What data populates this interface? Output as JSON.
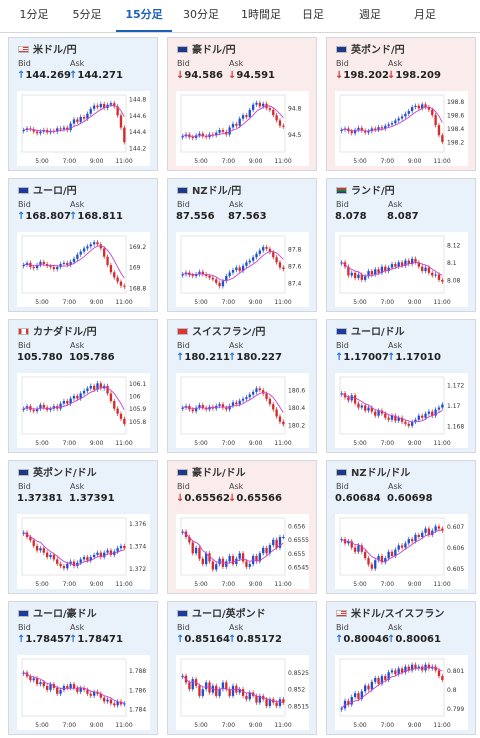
{
  "tabs": [
    {
      "label": "1分足",
      "active": false
    },
    {
      "label": "5分足",
      "active": false
    },
    {
      "label": "15分足",
      "active": true
    },
    {
      "label": "30分足",
      "active": false
    },
    {
      "label": "1時間足",
      "active": false
    },
    {
      "label": "日足",
      "active": false
    },
    {
      "label": "週足",
      "active": false
    },
    {
      "label": "月足",
      "active": false
    }
  ],
  "labels": {
    "bid": "Bid",
    "ask": "Ask"
  },
  "colors": {
    "up_bg": "#e9f2fb",
    "down_bg": "#fbecec",
    "up_arrow": "#1f74d6",
    "down_arrow": "#d23434",
    "bull": "#1f4fd1",
    "bear": "#d62b2b",
    "ma": "#c940d0",
    "accent": "#1b61b8"
  },
  "x_ticks": [
    "5:00",
    "7:00",
    "9:00",
    "11:00"
  ],
  "pairs": [
    {
      "name": "米ドル/円",
      "flag": "us",
      "trend": "up",
      "bid": "144.269",
      "ask": "144.271",
      "bid_dir": "up",
      "ask_dir": "up",
      "ylim": [
        144.15,
        144.85
      ],
      "y_ticks": [
        "144.8",
        "144.6",
        "144.4",
        "144.2"
      ],
      "y_tick_values": [
        144.8,
        144.6,
        144.4,
        144.2
      ],
      "chart_data": {
        "type": "candlestick",
        "close": [
          144.42,
          144.44,
          144.43,
          144.4,
          144.38,
          144.4,
          144.42,
          144.39,
          144.41,
          144.4,
          144.44,
          144.43,
          144.45,
          144.42,
          144.5,
          144.55,
          144.52,
          144.58,
          144.56,
          144.62,
          144.68,
          144.72,
          144.7,
          144.74,
          144.69,
          144.73,
          144.75,
          144.71,
          144.6,
          144.45,
          144.27
        ]
      }
    },
    {
      "name": "豪ドル/円",
      "flag": "au",
      "trend": "down",
      "bid": "94.586",
      "ask": "94.591",
      "bid_dir": "down",
      "ask_dir": "down",
      "ylim": [
        94.3,
        94.95
      ],
      "y_ticks": [
        "94.8",
        "94.5"
      ],
      "y_tick_values": [
        94.8,
        94.5
      ],
      "chart_data": {
        "type": "candlestick",
        "close": [
          94.48,
          94.5,
          94.47,
          94.46,
          94.49,
          94.51,
          94.48,
          94.47,
          94.5,
          94.49,
          94.52,
          94.55,
          94.53,
          94.5,
          94.58,
          94.62,
          94.6,
          94.68,
          94.72,
          94.7,
          94.78,
          94.84,
          94.86,
          94.82,
          94.85,
          94.8,
          94.78,
          94.72,
          94.66,
          94.6,
          94.59
        ]
      }
    },
    {
      "name": "英ポンド/円",
      "flag": "gb",
      "trend": "down",
      "bid": "198.202",
      "ask": "198.209",
      "bid_dir": "down",
      "ask_dir": "down",
      "ylim": [
        198.05,
        198.9
      ],
      "y_ticks": [
        "198.8",
        "198.6",
        "198.4",
        "198.2"
      ],
      "y_tick_values": [
        198.8,
        198.6,
        198.4,
        198.2
      ],
      "chart_data": {
        "type": "candlestick",
        "close": [
          198.38,
          198.4,
          198.36,
          198.33,
          198.38,
          198.41,
          198.37,
          198.34,
          198.36,
          198.4,
          198.38,
          198.42,
          198.4,
          198.44,
          198.46,
          198.48,
          198.52,
          198.55,
          198.58,
          198.62,
          198.66,
          198.72,
          198.74,
          198.7,
          198.76,
          198.72,
          198.68,
          198.6,
          198.45,
          198.3,
          198.2
        ]
      }
    },
    {
      "name": "ユーロ/円",
      "flag": "eu",
      "trend": "up",
      "bid": "168.807",
      "ask": "168.811",
      "bid_dir": "up",
      "ask_dir": "up",
      "ylim": [
        168.75,
        169.3
      ],
      "y_ticks": [
        "169.2",
        "169",
        "168.8"
      ],
      "y_tick_values": [
        169.2,
        169.0,
        168.8
      ],
      "chart_data": {
        "type": "candlestick",
        "close": [
          169.02,
          169.04,
          169.0,
          168.99,
          169.02,
          169.05,
          169.03,
          169.01,
          169.0,
          168.98,
          169.0,
          169.03,
          169.04,
          169.02,
          169.05,
          169.08,
          169.12,
          169.15,
          169.18,
          169.2,
          169.22,
          169.24,
          169.22,
          169.18,
          169.1,
          169.02,
          168.95,
          168.9,
          168.86,
          168.82,
          168.81
        ]
      }
    },
    {
      "name": "NZドル/円",
      "flag": "nz",
      "trend": "up",
      "bid": "87.556",
      "ask": "87.563",
      "bid_dir": "none",
      "ask_dir": "none",
      "ylim": [
        87.28,
        87.95
      ],
      "y_ticks": [
        "87.8",
        "87.6",
        "87.4"
      ],
      "y_tick_values": [
        87.8,
        87.6,
        87.4
      ],
      "chart_data": {
        "type": "candlestick",
        "close": [
          87.5,
          87.52,
          87.49,
          87.48,
          87.5,
          87.53,
          87.5,
          87.48,
          87.46,
          87.44,
          87.4,
          87.36,
          87.42,
          87.48,
          87.52,
          87.55,
          87.58,
          87.54,
          87.6,
          87.64,
          87.66,
          87.7,
          87.74,
          87.78,
          87.82,
          87.8,
          87.76,
          87.7,
          87.64,
          87.58,
          87.56
        ]
      }
    },
    {
      "name": "ランド/円",
      "flag": "za",
      "trend": "up",
      "bid": "8.078",
      "ask": "8.087",
      "bid_dir": "none",
      "ask_dir": "none",
      "ylim": [
        8.065,
        8.13
      ],
      "y_ticks": [
        "8.12",
        "8.1",
        "8.08"
      ],
      "y_tick_values": [
        8.12,
        8.1,
        8.08
      ],
      "chart_data": {
        "type": "candlestick",
        "close": [
          8.1,
          8.095,
          8.085,
          8.088,
          8.082,
          8.086,
          8.08,
          8.084,
          8.09,
          8.086,
          8.092,
          8.088,
          8.095,
          8.09,
          8.094,
          8.098,
          8.095,
          8.1,
          8.096,
          8.102,
          8.098,
          8.104,
          8.1,
          8.095,
          8.09,
          8.094,
          8.088,
          8.085,
          8.086,
          8.08,
          8.078
        ]
      }
    },
    {
      "name": "カナダドル/円",
      "flag": "ca",
      "trend": "up",
      "bid": "105.780",
      "ask": "105.786",
      "bid_dir": "none",
      "ask_dir": "none",
      "ylim": [
        105.7,
        106.15
      ],
      "y_ticks": [
        "106.1",
        "106",
        "105.9",
        "105.8"
      ],
      "y_tick_values": [
        106.1,
        106.0,
        105.9,
        105.8
      ],
      "chart_data": {
        "type": "candlestick",
        "close": [
          105.9,
          105.92,
          105.89,
          105.88,
          105.9,
          105.93,
          105.91,
          105.89,
          105.9,
          105.92,
          105.9,
          105.94,
          105.96,
          105.94,
          105.98,
          106.0,
          105.98,
          106.02,
          106.04,
          106.06,
          106.08,
          106.05,
          106.1,
          106.06,
          106.08,
          106.02,
          105.96,
          105.9,
          105.86,
          105.82,
          105.78
        ]
      }
    },
    {
      "name": "スイスフラン/円",
      "flag": "ch",
      "trend": "up",
      "bid": "180.211",
      "ask": "180.227",
      "bid_dir": "up",
      "ask_dir": "up",
      "ylim": [
        180.1,
        180.75
      ],
      "y_ticks": [
        "180.6",
        "180.4",
        "180.2"
      ],
      "y_tick_values": [
        180.6,
        180.4,
        180.2
      ],
      "chart_data": {
        "type": "candlestick",
        "close": [
          180.4,
          180.42,
          180.38,
          180.36,
          180.4,
          180.43,
          180.4,
          180.38,
          180.41,
          180.39,
          180.42,
          180.44,
          180.4,
          180.38,
          180.42,
          180.46,
          180.44,
          180.48,
          180.5,
          180.52,
          180.55,
          180.58,
          180.62,
          180.6,
          180.56,
          180.5,
          180.44,
          180.38,
          180.3,
          180.24,
          180.21
        ]
      }
    },
    {
      "name": "ユーロ/ドル",
      "flag": "eu",
      "trend": "up",
      "bid": "1.17007",
      "ask": "1.17010",
      "bid_dir": "up",
      "ask_dir": "up",
      "ylim": [
        1.1672,
        1.1728
      ],
      "y_ticks": [
        "1.172",
        "1.17",
        "1.168"
      ],
      "y_tick_values": [
        1.172,
        1.17,
        1.168
      ],
      "chart_data": {
        "type": "candlestick",
        "close": [
          1.1712,
          1.1708,
          1.1705,
          1.171,
          1.1702,
          1.1698,
          1.17,
          1.1695,
          1.1698,
          1.1694,
          1.169,
          1.1695,
          1.1692,
          1.1688,
          1.1686,
          1.169,
          1.1685,
          1.1688,
          1.1684,
          1.1682,
          1.168,
          1.1684,
          1.1686,
          1.169,
          1.1688,
          1.1692,
          1.1694,
          1.169,
          1.1696,
          1.1698,
          1.1701
        ]
      }
    },
    {
      "name": "英ポンド/ドル",
      "flag": "gb",
      "trend": "up",
      "bid": "1.37381",
      "ask": "1.37391",
      "bid_dir": "none",
      "ask_dir": "none",
      "ylim": [
        1.3714,
        1.3765
      ],
      "y_ticks": [
        "1.376",
        "1.374",
        "1.372"
      ],
      "y_tick_values": [
        1.376,
        1.374,
        1.372
      ],
      "chart_data": {
        "type": "candlestick",
        "close": [
          1.3752,
          1.3748,
          1.3745,
          1.374,
          1.3736,
          1.3738,
          1.3734,
          1.373,
          1.3732,
          1.3728,
          1.3724,
          1.3722,
          1.372,
          1.3724,
          1.3726,
          1.3722,
          1.3725,
          1.3728,
          1.373,
          1.3727,
          1.373,
          1.3732,
          1.3734,
          1.373,
          1.3734,
          1.3736,
          1.3732,
          1.3735,
          1.3738,
          1.374,
          1.3738
        ]
      }
    },
    {
      "name": "豪ドル/ドル",
      "flag": "au",
      "trend": "down",
      "bid": "0.65562",
      "ask": "0.65566",
      "bid_dir": "down",
      "ask_dir": "down",
      "ylim": [
        0.6542,
        0.6563
      ],
      "y_ticks": [
        "0.656",
        "0.6555",
        "0.655",
        "0.6545"
      ],
      "y_tick_values": [
        0.656,
        0.6555,
        0.655,
        0.6545
      ],
      "chart_data": {
        "type": "candlestick",
        "close": [
          0.6558,
          0.6556,
          0.6554,
          0.655,
          0.6552,
          0.6548,
          0.6546,
          0.655,
          0.6547,
          0.6544,
          0.6546,
          0.6548,
          0.6545,
          0.6547,
          0.6549,
          0.6546,
          0.6548,
          0.655,
          0.6547,
          0.6545,
          0.6546,
          0.6549,
          0.6547,
          0.655,
          0.6552,
          0.655,
          0.6553,
          0.6555,
          0.6552,
          0.6556,
          0.6556
        ]
      }
    },
    {
      "name": "NZドル/ドル",
      "flag": "nz",
      "trend": "up",
      "bid": "0.60684",
      "ask": "0.60698",
      "bid_dir": "none",
      "ask_dir": "none",
      "ylim": [
        0.6047,
        0.6074
      ],
      "y_ticks": [
        "0.607",
        "0.606",
        "0.605"
      ],
      "y_tick_values": [
        0.607,
        0.606,
        0.605
      ],
      "chart_data": {
        "type": "candlestick",
        "close": [
          0.6064,
          0.6062,
          0.6063,
          0.606,
          0.6058,
          0.6061,
          0.6058,
          0.6055,
          0.6052,
          0.605,
          0.6054,
          0.6056,
          0.6053,
          0.6055,
          0.6058,
          0.6056,
          0.6059,
          0.6061,
          0.606,
          0.6062,
          0.6064,
          0.6063,
          0.6066,
          0.6065,
          0.6067,
          0.6069,
          0.6066,
          0.6068,
          0.607,
          0.6069,
          0.6068
        ]
      }
    },
    {
      "name": "ユーロ/豪ドル",
      "flag": "eu",
      "trend": "up",
      "bid": "1.78457",
      "ask": "1.78471",
      "bid_dir": "up",
      "ask_dir": "up",
      "ylim": [
        1.7833,
        1.7892
      ],
      "y_ticks": [
        "1.788",
        "1.786",
        "1.784"
      ],
      "y_tick_values": [
        1.788,
        1.786,
        1.784
      ],
      "chart_data": {
        "type": "candlestick",
        "close": [
          1.7878,
          1.7874,
          1.787,
          1.7872,
          1.7866,
          1.7868,
          1.7864,
          1.786,
          1.7866,
          1.7862,
          1.7856,
          1.786,
          1.7864,
          1.7862,
          1.7866,
          1.7862,
          1.7858,
          1.7862,
          1.786,
          1.7856,
          1.7854,
          1.7858,
          1.7856,
          1.7852,
          1.7848,
          1.785,
          1.7846,
          1.7844,
          1.7848,
          1.7845,
          1.7846
        ]
      }
    },
    {
      "name": "ユーロ/英ポンド",
      "flag": "eu",
      "trend": "up",
      "bid": "0.85164",
      "ask": "0.85172",
      "bid_dir": "up",
      "ask_dir": "up",
      "ylim": [
        0.8512,
        0.8529
      ],
      "y_ticks": [
        "0.8525",
        "0.852",
        "0.8515"
      ],
      "y_tick_values": [
        0.8525,
        0.852,
        0.8515
      ],
      "chart_data": {
        "type": "candlestick",
        "close": [
          0.8524,
          0.8522,
          0.852,
          0.8523,
          0.8521,
          0.8518,
          0.852,
          0.8522,
          0.8519,
          0.8521,
          0.8518,
          0.852,
          0.8522,
          0.852,
          0.8518,
          0.8521,
          0.8519,
          0.852,
          0.8518,
          0.8517,
          0.8519,
          0.8518,
          0.8516,
          0.8518,
          0.8517,
          0.8515,
          0.8517,
          0.8516,
          0.8515,
          0.8517,
          0.8516
        ]
      }
    },
    {
      "name": "米ドル/スイスフラン",
      "flag": "us",
      "trend": "up",
      "bid": "0.80046",
      "ask": "0.80061",
      "bid_dir": "up",
      "ask_dir": "up",
      "ylim": [
        0.7986,
        0.8016
      ],
      "y_ticks": [
        "0.801",
        "0.8",
        "0.799"
      ],
      "y_tick_values": [
        0.801,
        0.8,
        0.799
      ],
      "chart_data": {
        "type": "candlestick",
        "close": [
          0.799,
          0.7994,
          0.7992,
          0.7996,
          0.7998,
          0.7995,
          0.7999,
          0.8002,
          0.8,
          0.8004,
          0.8006,
          0.8003,
          0.8007,
          0.8005,
          0.8009,
          0.801,
          0.8008,
          0.8011,
          0.8009,
          0.8012,
          0.801,
          0.8013,
          0.8011,
          0.8012,
          0.801,
          0.8013,
          0.8011,
          0.8012,
          0.801,
          0.8007,
          0.8005
        ]
      }
    }
  ]
}
